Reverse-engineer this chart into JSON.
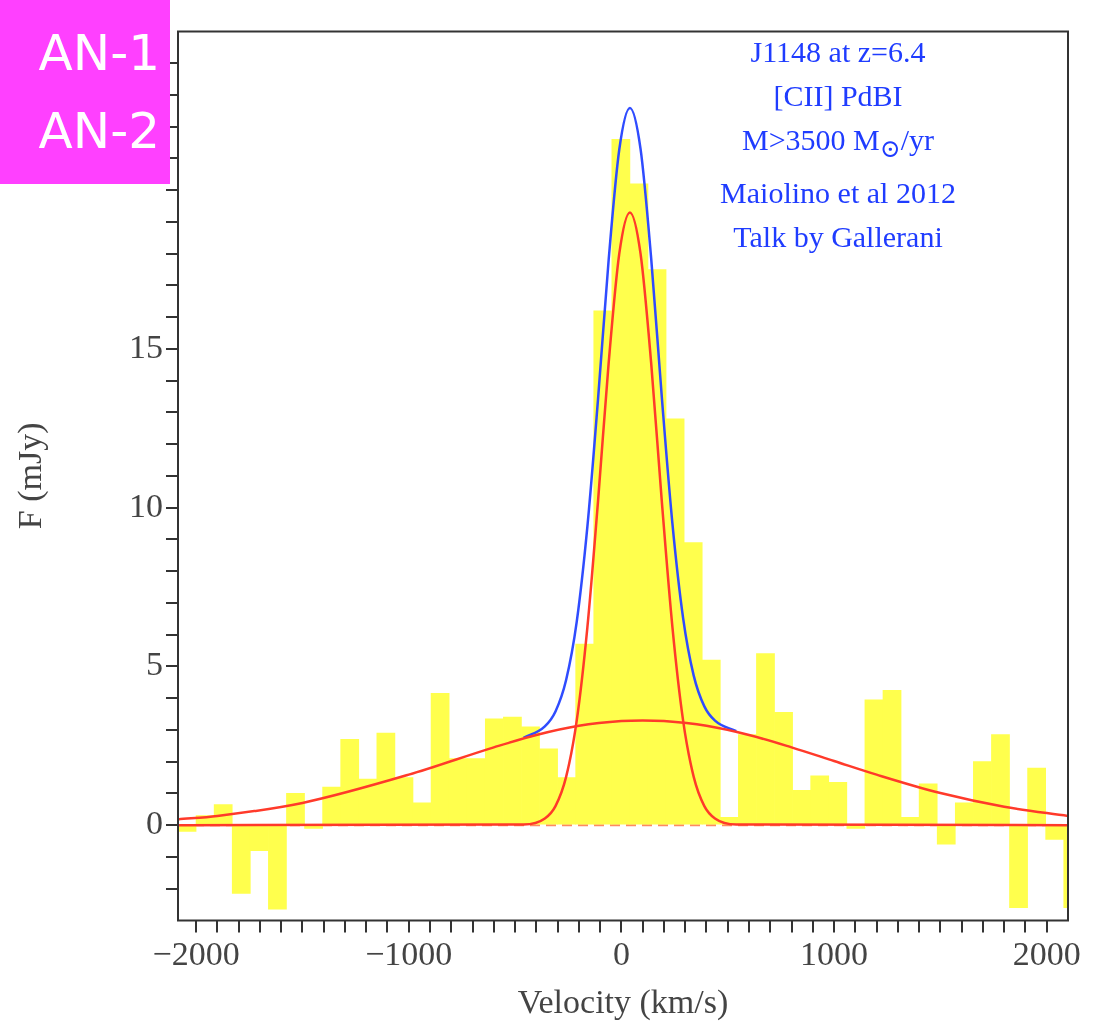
{
  "chart_data": {
    "type": "histogram",
    "xlabel": "Velocity (km/s)",
    "ylabel": "F (mJy)",
    "annotations": [
      "J1148 at z=6.4",
      "[CII] PdBI",
      "M>3500 M$_{⊙}$/yr",
      "Maiolino et al 2012",
      "Talk by Gallerani",
      "AN-1",
      "AN-2"
    ],
    "bins": [
      -2085,
      -2000,
      -1915,
      -1830,
      -1745,
      -1660,
      -1575,
      -1490,
      -1405,
      -1320,
      -1235,
      -1150,
      -1065,
      -980,
      -895,
      -810,
      -725,
      -640,
      -555,
      -470,
      -385,
      -300,
      -215,
      -130,
      -45,
      40,
      125,
      210,
      295,
      380,
      465,
      550,
      635,
      720,
      805,
      890,
      975,
      1060,
      1145,
      1230,
      1315,
      1400,
      1485,
      1570,
      1655,
      1740,
      1825,
      1910,
      1995,
      2080,
      2100
    ],
    "values": [
      -0.2,
      0.3,
      0.65,
      -2.15,
      -0.8,
      -2.65,
      1.0,
      -0.1,
      1.2,
      2.7,
      1.45,
      2.9,
      1.5,
      0.7,
      4.15,
      2.1,
      2.1,
      3.35,
      3.4,
      3.1,
      2.4,
      1.5,
      5.7,
      16.2,
      21.6,
      20.2,
      17.5,
      12.8,
      8.9,
      5.2,
      0.25,
      2.85,
      5.4,
      3.55,
      1.1,
      1.55,
      1.35,
      -0.1,
      3.95,
      4.25,
      0.25,
      1.3,
      -0.6,
      0.7,
      2.0,
      2.85,
      -2.6,
      1.8,
      -0.45,
      -2.6
    ],
    "color": "#ffff4d",
    "series": [
      {
        "type": "line",
        "color": "#ff3a2a",
        "x": [
          -2085,
          -1900,
          -1500,
          -1000,
          -600,
          -400,
          -200,
          0,
          100,
          200,
          400,
          600,
          800,
          1000,
          1200,
          1500,
          1800,
          2100
        ],
        "values": [
          0.18,
          0.29,
          0.7,
          1.59,
          2.45,
          2.84,
          3.13,
          3.28,
          3.3,
          3.28,
          3.13,
          2.84,
          2.45,
          2.02,
          1.59,
          1.01,
          0.58,
          0.29
        ]
      },
      {
        "type": "line",
        "color": "#ff3a2a",
        "x": [
          -2085,
          -460,
          -360,
          -310,
          -260,
          -210,
          -160,
          -110,
          -60,
          -10,
          40,
          90,
          140,
          190,
          240,
          290,
          340,
          390,
          440,
          540,
          2100
        ],
        "values": [
          0,
          0.02,
          0.21,
          0.6,
          1.52,
          3.3,
          6.23,
          10.2,
          14.55,
          18.0,
          19.3,
          18.0,
          14.55,
          10.2,
          6.23,
          3.3,
          1.52,
          0.6,
          0.21,
          0.02,
          0
        ]
      },
      {
        "type": "line",
        "color": "#2f4cff",
        "x": [
          -460,
          -360,
          -310,
          -260,
          -210,
          -160,
          -110,
          -60,
          -10,
          40,
          90,
          140,
          190,
          240,
          290,
          340,
          390,
          440,
          540
        ],
        "values": [
          2.75,
          3.11,
          3.58,
          4.57,
          6.41,
          9.4,
          13.41,
          17.8,
          21.28,
          22.59,
          21.3,
          17.85,
          13.48,
          9.49,
          6.53,
          4.71,
          3.74,
          3.29,
          2.96
        ]
      }
    ],
    "ref_lines": [
      {
        "axis": "y",
        "value": 0,
        "color": "#ff8a60",
        "line_style": "dashed"
      }
    ],
    "xlim": [
      -2085,
      2100
    ],
    "xticks": [
      -2000,
      {
        "value": -1900,
        "label": null
      },
      {
        "value": -1800,
        "label": null
      },
      {
        "value": -1700,
        "label": null
      },
      {
        "value": -1600,
        "label": null
      },
      {
        "value": -1500,
        "label": null
      },
      {
        "value": -1400,
        "label": null
      },
      {
        "value": -1300,
        "label": null
      },
      {
        "value": -1200,
        "label": null
      },
      {
        "value": -1100,
        "label": null
      },
      -1000,
      {
        "value": -900,
        "label": null
      },
      {
        "value": -800,
        "label": null
      },
      {
        "value": -700,
        "label": null
      },
      {
        "value": -600,
        "label": null
      },
      {
        "value": -500,
        "label": null
      },
      {
        "value": -400,
        "label": null
      },
      {
        "value": -300,
        "label": null
      },
      {
        "value": -200,
        "label": null
      },
      {
        "value": -100,
        "label": null
      },
      0,
      {
        "value": 100,
        "label": null
      },
      {
        "value": 200,
        "label": null
      },
      {
        "value": 300,
        "label": null
      },
      {
        "value": 400,
        "label": null
      },
      {
        "value": 500,
        "label": null
      },
      {
        "value": 600,
        "label": null
      },
      {
        "value": 700,
        "label": null
      },
      {
        "value": 800,
        "label": null
      },
      {
        "value": 900,
        "label": null
      },
      1000,
      {
        "value": 1100,
        "label": null
      },
      {
        "value": 1200,
        "label": null
      },
      {
        "value": 1300,
        "label": null
      },
      {
        "value": 1400,
        "label": null
      },
      {
        "value": 1500,
        "label": null
      },
      {
        "value": 1600,
        "label": null
      },
      {
        "value": 1700,
        "label": null
      },
      {
        "value": 1800,
        "label": null
      },
      {
        "value": 1900,
        "label": null
      },
      2000
    ],
    "ylim": [
      -3,
      25
    ],
    "yticks": [
      {
        "value": -2,
        "label": null
      },
      {
        "value": -1,
        "label": null
      },
      0,
      {
        "value": 1,
        "label": null
      },
      {
        "value": 2,
        "label": null
      },
      {
        "value": 3,
        "label": null
      },
      {
        "value": 4,
        "label": null
      },
      5,
      {
        "value": 6,
        "label": null
      },
      {
        "value": 7,
        "label": null
      },
      {
        "value": 8,
        "label": null
      },
      {
        "value": 9,
        "label": null
      },
      10,
      {
        "value": 11,
        "label": null
      },
      {
        "value": 12,
        "label": null
      },
      {
        "value": 13,
        "label": null
      },
      {
        "value": 14,
        "label": null
      },
      15,
      {
        "value": 16,
        "label": null
      },
      {
        "value": 17,
        "label": null
      },
      {
        "value": 18,
        "label": null
      },
      {
        "value": 19,
        "label": null
      },
      {
        "value": 20,
        "label": null
      },
      {
        "value": 21,
        "label": null
      },
      {
        "value": 22,
        "label": null
      },
      {
        "value": 23,
        "label": null
      },
      {
        "value": 24,
        "label": null
      }
    ],
    "grid": false,
    "legend": false
  }
}
